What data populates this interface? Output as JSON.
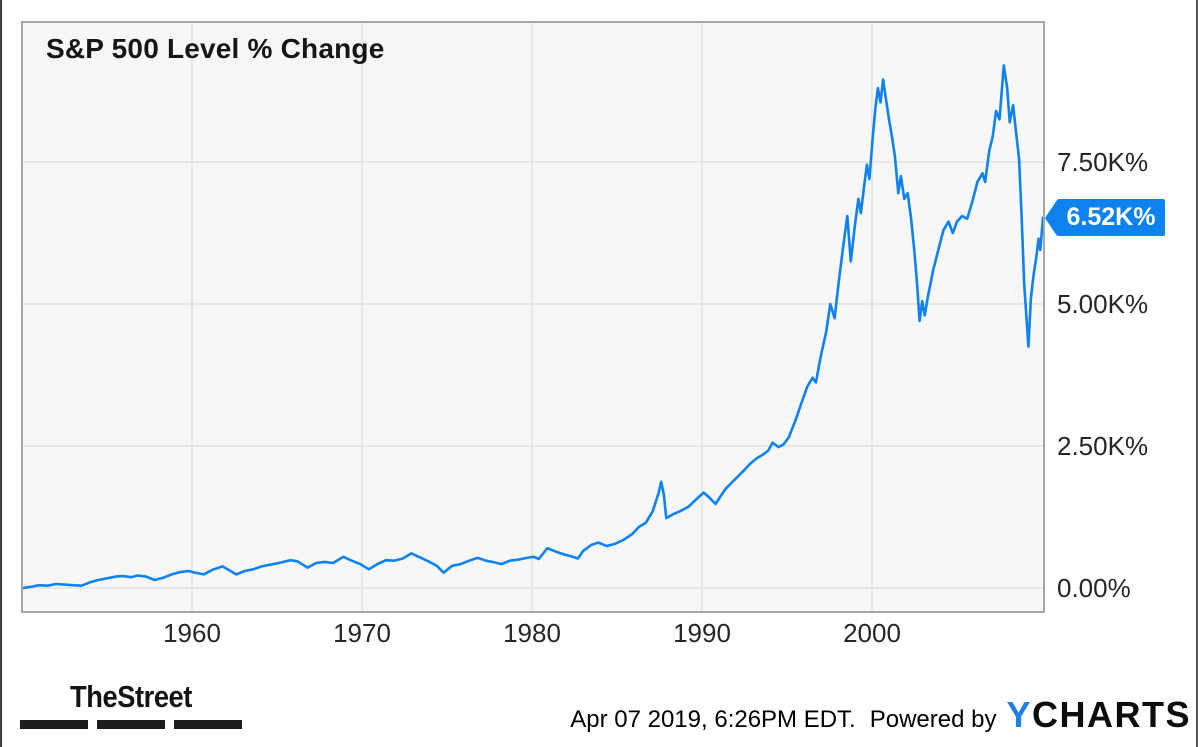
{
  "colors": {
    "line": "#0e82f0",
    "badge_bg": "#0e82f0",
    "badge_text": "#ffffff",
    "gridline": "#e2e2e2",
    "plot_background": "#f7f7f7",
    "plot_border": "#a6a6a6",
    "ycharts_blue": "#2380e8",
    "thestreet_black": "#1d1d1d"
  },
  "footer": {
    "thestreet": "TheStreet",
    "timestamp": "Apr 07 2019, 6:26PM EDT.",
    "powered_by": "Powered by",
    "ycharts_y": "Y",
    "ycharts_charts": "CHARTS"
  },
  "chart_data": {
    "type": "line",
    "title": "S&P 500 Level % Change",
    "grid": true,
    "legend_position": "none",
    "y_axis_side": "right",
    "x_range": [
      1950,
      2010.1
    ],
    "y_range_percent": [
      -400,
      9950
    ],
    "x_ticks": [
      {
        "year": 1960,
        "label": "1960"
      },
      {
        "year": 1970,
        "label": "1970"
      },
      {
        "year": 1980,
        "label": "1980"
      },
      {
        "year": 1990,
        "label": "1990"
      },
      {
        "year": 2000,
        "label": "2000"
      }
    ],
    "y_ticks": [
      {
        "value": 0,
        "label": "0.00%"
      },
      {
        "value": 2500,
        "label": "2.50K%"
      },
      {
        "value": 5000,
        "label": "5.00K%"
      },
      {
        "value": 7500,
        "label": "7.50K%"
      }
    ],
    "last_point": {
      "value": 6520,
      "label": "6.52K%"
    },
    "series": [
      {
        "name": "S&P 500 Level % Change",
        "units": "percent_change",
        "points": [
          [
            1950.0,
            0
          ],
          [
            1950.5,
            20
          ],
          [
            1951.0,
            50
          ],
          [
            1951.5,
            40
          ],
          [
            1952.0,
            70
          ],
          [
            1952.5,
            60
          ],
          [
            1953.0,
            50
          ],
          [
            1953.5,
            40
          ],
          [
            1954.0,
            100
          ],
          [
            1954.5,
            140
          ],
          [
            1955.0,
            170
          ],
          [
            1955.5,
            200
          ],
          [
            1956.0,
            210
          ],
          [
            1956.4,
            190
          ],
          [
            1956.8,
            220
          ],
          [
            1957.3,
            200
          ],
          [
            1957.8,
            140
          ],
          [
            1958.3,
            180
          ],
          [
            1958.8,
            240
          ],
          [
            1959.3,
            280
          ],
          [
            1959.8,
            300
          ],
          [
            1960.2,
            270
          ],
          [
            1960.7,
            240
          ],
          [
            1961.2,
            320
          ],
          [
            1961.8,
            380
          ],
          [
            1962.2,
            310
          ],
          [
            1962.6,
            240
          ],
          [
            1963.1,
            300
          ],
          [
            1963.6,
            330
          ],
          [
            1964.1,
            380
          ],
          [
            1964.6,
            410
          ],
          [
            1965.1,
            440
          ],
          [
            1965.8,
            490
          ],
          [
            1966.2,
            470
          ],
          [
            1966.8,
            360
          ],
          [
            1967.3,
            440
          ],
          [
            1967.8,
            460
          ],
          [
            1968.3,
            440
          ],
          [
            1968.9,
            550
          ],
          [
            1969.4,
            480
          ],
          [
            1969.9,
            420
          ],
          [
            1970.4,
            330
          ],
          [
            1970.9,
            420
          ],
          [
            1971.4,
            490
          ],
          [
            1971.9,
            480
          ],
          [
            1972.4,
            520
          ],
          [
            1972.9,
            610
          ],
          [
            1973.4,
            540
          ],
          [
            1973.9,
            470
          ],
          [
            1974.4,
            390
          ],
          [
            1974.8,
            270
          ],
          [
            1975.3,
            390
          ],
          [
            1975.8,
            420
          ],
          [
            1976.3,
            480
          ],
          [
            1976.8,
            530
          ],
          [
            1977.3,
            480
          ],
          [
            1977.8,
            450
          ],
          [
            1978.2,
            420
          ],
          [
            1978.7,
            480
          ],
          [
            1979.2,
            500
          ],
          [
            1979.7,
            530
          ],
          [
            1980.1,
            550
          ],
          [
            1980.4,
            510
          ],
          [
            1980.9,
            700
          ],
          [
            1981.4,
            640
          ],
          [
            1981.9,
            590
          ],
          [
            1982.4,
            550
          ],
          [
            1982.7,
            520
          ],
          [
            1983.0,
            650
          ],
          [
            1983.5,
            760
          ],
          [
            1983.9,
            800
          ],
          [
            1984.4,
            740
          ],
          [
            1984.9,
            780
          ],
          [
            1985.4,
            850
          ],
          [
            1985.9,
            950
          ],
          [
            1986.3,
            1080
          ],
          [
            1986.7,
            1150
          ],
          [
            1987.1,
            1350
          ],
          [
            1987.45,
            1680
          ],
          [
            1987.6,
            1870
          ],
          [
            1987.75,
            1650
          ],
          [
            1987.9,
            1230
          ],
          [
            1988.3,
            1300
          ],
          [
            1988.7,
            1350
          ],
          [
            1989.2,
            1430
          ],
          [
            1989.8,
            1600
          ],
          [
            1990.1,
            1680
          ],
          [
            1990.4,
            1600
          ],
          [
            1990.8,
            1480
          ],
          [
            1991.1,
            1620
          ],
          [
            1991.4,
            1750
          ],
          [
            1991.9,
            1900
          ],
          [
            1992.4,
            2050
          ],
          [
            1992.8,
            2180
          ],
          [
            1993.2,
            2280
          ],
          [
            1993.6,
            2350
          ],
          [
            1993.9,
            2420
          ],
          [
            1994.15,
            2560
          ],
          [
            1994.5,
            2480
          ],
          [
            1994.8,
            2530
          ],
          [
            1995.1,
            2650
          ],
          [
            1995.5,
            2950
          ],
          [
            1995.9,
            3300
          ],
          [
            1996.2,
            3550
          ],
          [
            1996.5,
            3700
          ],
          [
            1996.7,
            3620
          ],
          [
            1997.0,
            4100
          ],
          [
            1997.3,
            4500
          ],
          [
            1997.55,
            5000
          ],
          [
            1997.8,
            4750
          ],
          [
            1998.05,
            5400
          ],
          [
            1998.3,
            6000
          ],
          [
            1998.55,
            6550
          ],
          [
            1998.75,
            5750
          ],
          [
            1999.0,
            6400
          ],
          [
            1999.2,
            6850
          ],
          [
            1999.35,
            6600
          ],
          [
            1999.55,
            7100
          ],
          [
            1999.7,
            7450
          ],
          [
            1999.85,
            7200
          ],
          [
            2000.05,
            7950
          ],
          [
            2000.2,
            8450
          ],
          [
            2000.35,
            8800
          ],
          [
            2000.5,
            8550
          ],
          [
            2000.65,
            8950
          ],
          [
            2000.8,
            8650
          ],
          [
            2001.0,
            8250
          ],
          [
            2001.2,
            7900
          ],
          [
            2001.35,
            7600
          ],
          [
            2001.55,
            6950
          ],
          [
            2001.7,
            7250
          ],
          [
            2001.9,
            6850
          ],
          [
            2002.1,
            6950
          ],
          [
            2002.3,
            6500
          ],
          [
            2002.5,
            5900
          ],
          [
            2002.65,
            5350
          ],
          [
            2002.8,
            4700
          ],
          [
            2002.95,
            5050
          ],
          [
            2003.1,
            4800
          ],
          [
            2003.3,
            5150
          ],
          [
            2003.6,
            5600
          ],
          [
            2003.9,
            5950
          ],
          [
            2004.2,
            6300
          ],
          [
            2004.5,
            6450
          ],
          [
            2004.75,
            6250
          ],
          [
            2005.0,
            6450
          ],
          [
            2005.3,
            6550
          ],
          [
            2005.6,
            6500
          ],
          [
            2005.9,
            6800
          ],
          [
            2006.2,
            7150
          ],
          [
            2006.5,
            7300
          ],
          [
            2006.65,
            7150
          ],
          [
            2006.9,
            7700
          ],
          [
            2007.1,
            7950
          ],
          [
            2007.3,
            8400
          ],
          [
            2007.5,
            8250
          ],
          [
            2007.75,
            9200
          ],
          [
            2007.95,
            8800
          ],
          [
            2008.1,
            8200
          ],
          [
            2008.3,
            8500
          ],
          [
            2008.5,
            7950
          ],
          [
            2008.65,
            7550
          ],
          [
            2008.8,
            6550
          ],
          [
            2008.95,
            5350
          ],
          [
            2009.1,
            4700
          ],
          [
            2009.2,
            4250
          ],
          [
            2009.35,
            5100
          ],
          [
            2009.5,
            5500
          ],
          [
            2009.65,
            5800
          ],
          [
            2009.8,
            6150
          ],
          [
            2009.9,
            5950
          ],
          [
            2010.1,
            6520
          ]
        ]
      }
    ]
  }
}
